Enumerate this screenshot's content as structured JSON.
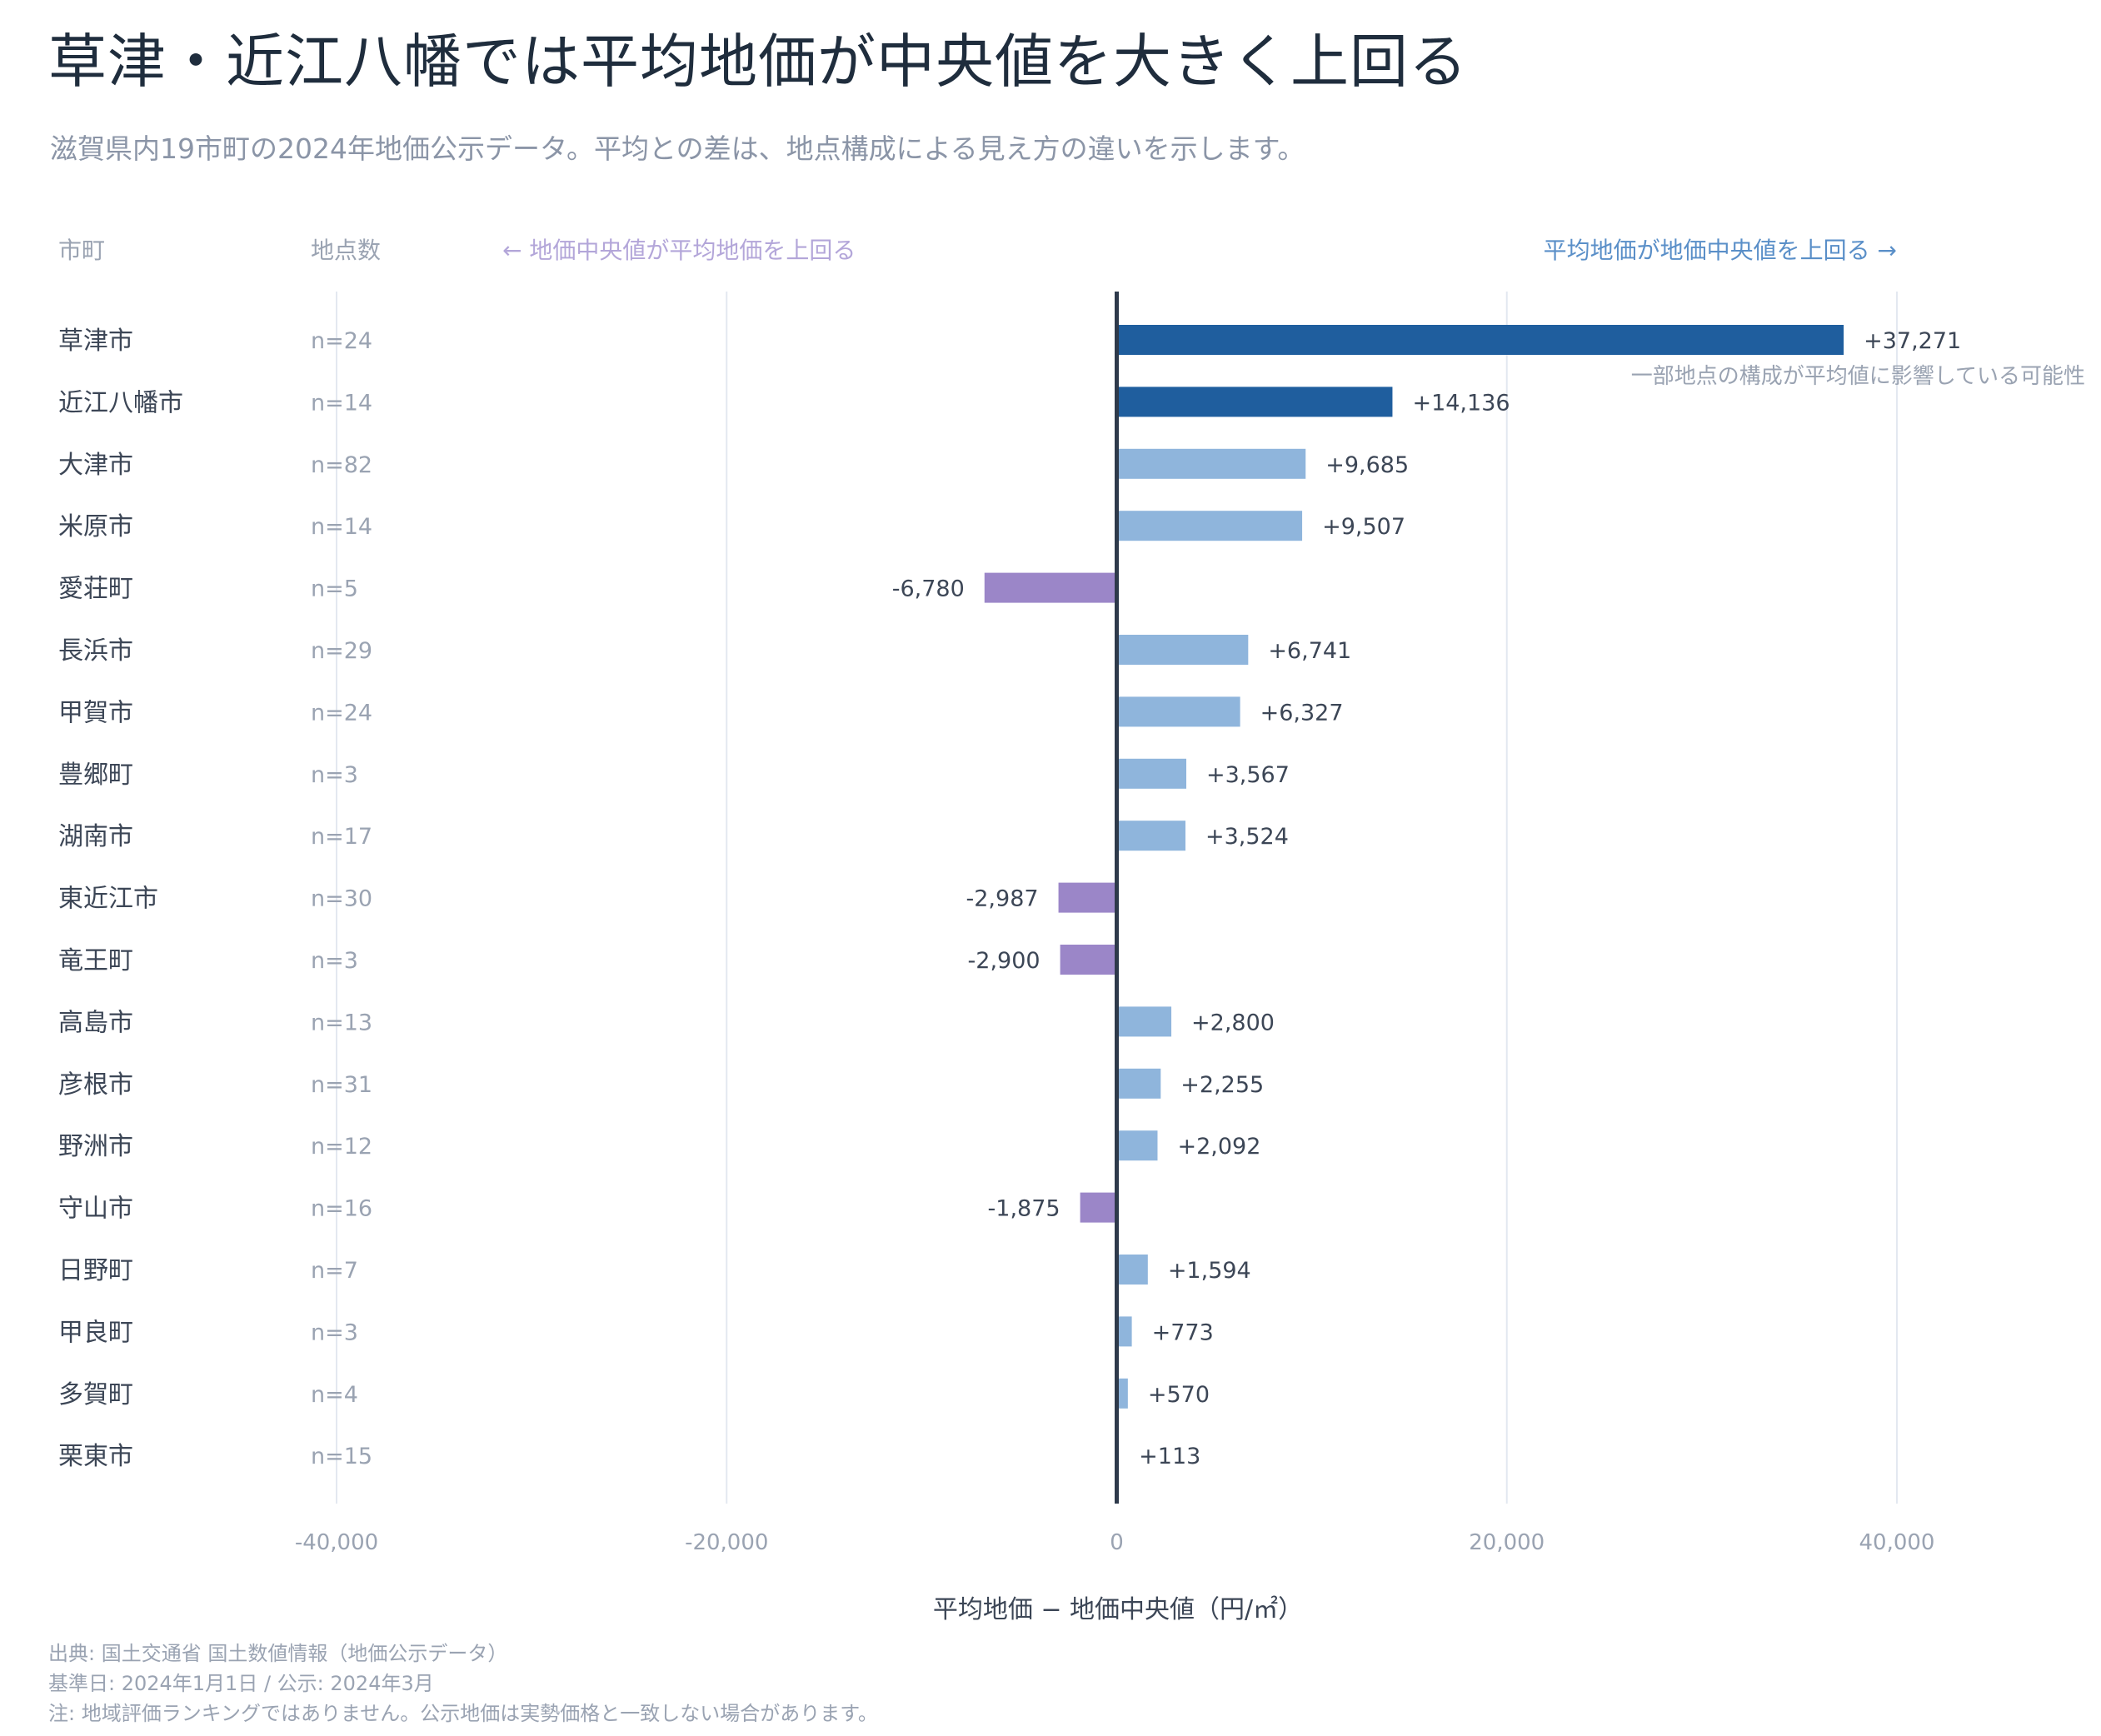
{
  "title": "草津・近江八幡では平均地価が中央値を大きく上回る",
  "subtitle": "滋賀県内19市町の2024年地価公示データ。平均との差は、地点構成による見え方の違いを示します。",
  "headers": {
    "municipality": "市町",
    "count": "地点数",
    "left_direction": "← 地価中央値が平均地価を上回る",
    "right_direction": "平均地価が地価中央値を上回る →"
  },
  "annotation": "一部地点の構成が平均値に影響している可能性",
  "colors": {
    "strong_positive": "#1f5e9e",
    "positive": "#8fb5dc",
    "negative": "#9b86c8",
    "zero_line": "#2e3a4b",
    "grid": "#e3e8f0",
    "label": "#3c4656",
    "muted": "#9aa3b2"
  },
  "chart_data": {
    "type": "bar",
    "orientation": "horizontal",
    "title": "草津・近江八幡では平均地価が中央値を大きく上回る",
    "xlabel": "平均地価 − 地価中央値（円/㎡）",
    "ylabel": "市町",
    "xlim": [
      -40000,
      40000
    ],
    "xticks": [
      -40000,
      -20000,
      0,
      20000,
      40000
    ],
    "xtick_labels": [
      "-40,000",
      "-20,000",
      "0",
      "20,000",
      "40,000"
    ],
    "grid": true,
    "categories": [
      "草津市",
      "近江八幡市",
      "大津市",
      "米原市",
      "愛荘町",
      "長浜市",
      "甲賀市",
      "豊郷町",
      "湖南市",
      "東近江市",
      "竜王町",
      "高島市",
      "彦根市",
      "野洲市",
      "守山市",
      "日野町",
      "甲良町",
      "多賀町",
      "栗東市"
    ],
    "counts": [
      "n=24",
      "n=14",
      "n=82",
      "n=14",
      "n=5",
      "n=29",
      "n=24",
      "n=3",
      "n=17",
      "n=30",
      "n=3",
      "n=13",
      "n=31",
      "n=12",
      "n=16",
      "n=7",
      "n=3",
      "n=4",
      "n=15"
    ],
    "values": [
      37271,
      14136,
      9685,
      9507,
      -6780,
      6741,
      6327,
      3567,
      3524,
      -2987,
      -2900,
      2800,
      2255,
      2092,
      -1875,
      1594,
      773,
      570,
      113
    ],
    "value_labels": [
      "+37,271",
      "+14,136",
      "+9,685",
      "+9,507",
      "-6,780",
      "+6,741",
      "+6,327",
      "+3,567",
      "+3,524",
      "-2,987",
      "-2,900",
      "+2,800",
      "+2,255",
      "+2,092",
      "-1,875",
      "+1,594",
      "+773",
      "+570",
      "+113"
    ],
    "highlighted": [
      "草津市",
      "近江八幡市"
    ]
  },
  "footer": {
    "source": "出典: 国土交通省 国土数値情報（地価公示データ）",
    "date": "基準日: 2024年1月1日 / 公示: 2024年3月",
    "note": "注: 地域評価ランキングではありません。公示地価は実勢価格と一致しない場合があります。"
  }
}
